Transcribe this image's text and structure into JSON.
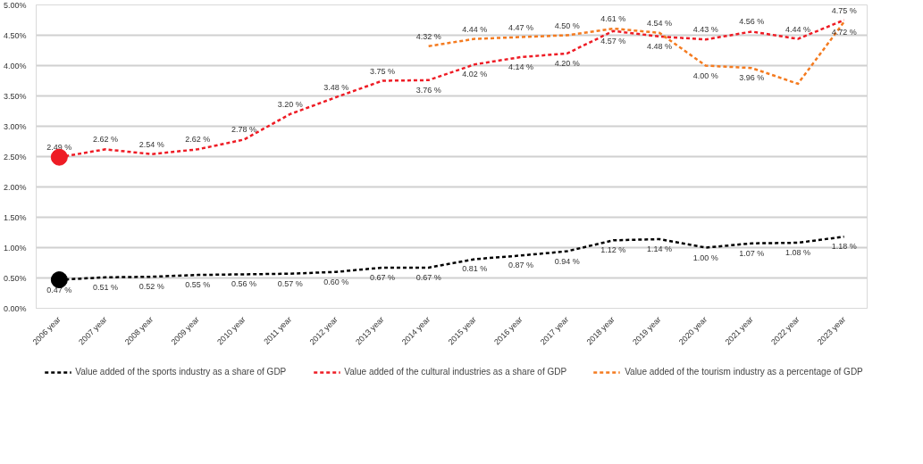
{
  "chart_data": {
    "type": "line",
    "categories": [
      "2006 year",
      "2007 year",
      "2008 year",
      "2009 year",
      "2010 year",
      "2011 year",
      "2012 year",
      "2013 year",
      "2014 year",
      "2015 year",
      "2016 year",
      "2017 year",
      "2018 year",
      "2019 year",
      "2020 year",
      "2021 year",
      "2022 year",
      "2023 year"
    ],
    "series": [
      {
        "name": "Value added of the sports industry as a share of GDP",
        "color": "#000000",
        "values": [
          0.47,
          0.51,
          0.52,
          0.55,
          0.56,
          0.57,
          0.6,
          0.67,
          0.67,
          0.81,
          0.87,
          0.94,
          1.12,
          1.14,
          1.0,
          1.07,
          1.08,
          1.18
        ],
        "value_labels": [
          "0.47 %",
          "0.51 %",
          "0.52 %",
          "0.55 %",
          "0.56 %",
          "0.57 %",
          "0.60 %",
          "0.67 %",
          "0.67 %",
          "0.81 %",
          "0.87 %",
          "0.94 %",
          "1.12 %",
          "1.14 %",
          "1.00 %",
          "1.07 %",
          "1.08 %",
          "1.18 %"
        ]
      },
      {
        "name": "Value added of the cultural industries as a share of GDP",
        "color": "#ee1c25",
        "values": [
          2.49,
          2.62,
          2.54,
          2.62,
          2.78,
          3.2,
          3.48,
          3.75,
          3.76,
          4.02,
          4.14,
          4.2,
          4.57,
          4.48,
          4.43,
          4.56,
          4.44,
          4.75
        ],
        "value_labels": [
          "2.49 %",
          "2.62 %",
          "2.54 %",
          "2.62 %",
          "2.78 %",
          "3.20 %",
          "3.48 %",
          "3.75 %",
          "3.76 %",
          "4.02 %",
          "4.14 %",
          "4.20 %",
          "4.57 %",
          "4.48 %",
          "4.43 %",
          "4.56 %",
          "4.44 %",
          "4.75 %"
        ]
      },
      {
        "name": "Value added of the tourism industry as a percentage of GDP",
        "color": "#f47b20",
        "values": [
          null,
          null,
          null,
          null,
          null,
          null,
          null,
          null,
          4.32,
          4.44,
          4.47,
          4.5,
          4.61,
          4.54,
          4.0,
          3.96,
          3.7,
          4.72
        ],
        "value_labels": [
          null,
          null,
          null,
          null,
          null,
          null,
          null,
          null,
          "4.32 %",
          "4.44 %",
          "4.47 %",
          "4.50 %",
          "4.61 %",
          "4.54 %",
          "4.00 %",
          "3.96 %",
          null,
          "4.72 %"
        ]
      },
      {
        "type": "scatter",
        "color": "#000000",
        "x": [
          "2006 year"
        ],
        "values": [
          0.47
        ]
      },
      {
        "type": "scatter",
        "color": "#ee1c25",
        "x": [
          "2006 year"
        ],
        "values": [
          2.49
        ]
      }
    ],
    "line_style": "dashed",
    "ylim": [
      0,
      5
    ],
    "yticks": [
      {
        "value": 0,
        "label": "0.00%"
      },
      {
        "value": 0.5,
        "label": "0.50%"
      },
      {
        "value": 1,
        "label": "1.00%"
      },
      {
        "value": 1.5,
        "label": "1.50%"
      },
      {
        "value": 2,
        "label": "2.00%"
      },
      {
        "value": 2.5,
        "label": "2.50%"
      },
      {
        "value": 3,
        "label": "3.00%"
      },
      {
        "value": 3.5,
        "label": "3.50%"
      },
      {
        "value": 4,
        "label": "4.00%"
      },
      {
        "value": 4.5,
        "label": "4.50%"
      },
      {
        "value": 5,
        "label": "5.00%"
      }
    ],
    "grid": "y",
    "legend": "bottom"
  }
}
